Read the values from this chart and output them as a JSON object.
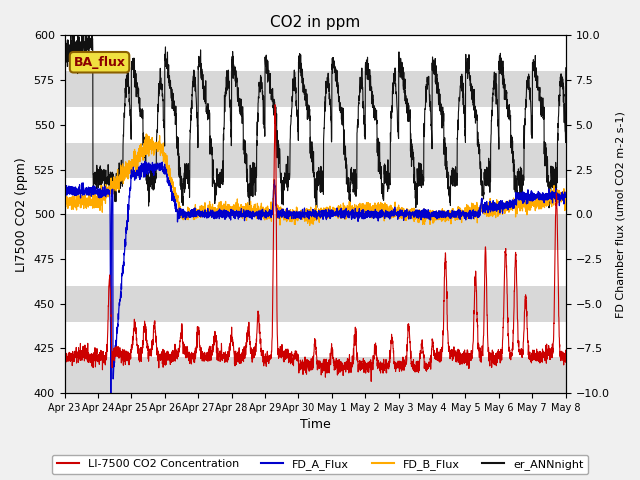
{
  "title": "CO2 in ppm",
  "xlabel": "Time",
  "ylabel_left": "LI7500 CO2 (ppm)",
  "ylabel_right": "FD Chamber flux (umol CO2 m-2 s-1)",
  "ylim_left": [
    400,
    600
  ],
  "ylim_right": [
    -10,
    10
  ],
  "xlim_days": [
    0,
    15.0
  ],
  "x_tick_labels": [
    "Apr 23",
    "Apr 24",
    "Apr 25",
    "Apr 26",
    "Apr 27",
    "Apr 28",
    "Apr 29",
    "Apr 30",
    "May 1",
    "May 2",
    "May 3",
    "May 4",
    "May 5",
    "May 6",
    "May 7",
    "May 8"
  ],
  "x_tick_positions": [
    0,
    1,
    2,
    3,
    4,
    5,
    6,
    7,
    8,
    9,
    10,
    11,
    12,
    13,
    14,
    15
  ],
  "ba_flux_label": "BA_flux",
  "legend_entries": [
    "LI-7500 CO2 Concentration",
    "FD_A_Flux",
    "FD_B_Flux",
    "er_ANNnight"
  ],
  "colors": {
    "red": "#cc0000",
    "blue": "#0000cc",
    "orange": "#ffaa00",
    "black": "#111111"
  },
  "n_points": 3000
}
